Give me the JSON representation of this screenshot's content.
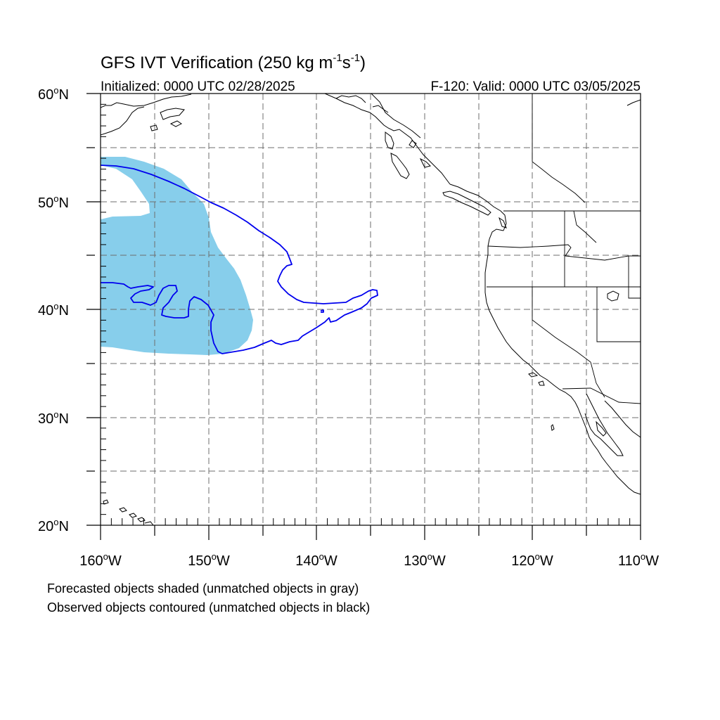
{
  "title": {
    "main": "GFS IVT Verification (250 kg m",
    "exp1": "-1",
    "mid": "s",
    "exp2": "-1",
    "close": ")"
  },
  "subtitle_left": "Initialized: 0000 UTC 02/28/2025",
  "subtitle_right": "F-120: Valid: 0000 UTC 03/05/2025",
  "lat_labels": [
    {
      "deg": "60",
      "hemi": "N"
    },
    {
      "deg": "50",
      "hemi": "N"
    },
    {
      "deg": "40",
      "hemi": "N"
    },
    {
      "deg": "30",
      "hemi": "N"
    },
    {
      "deg": "20",
      "hemi": "N"
    }
  ],
  "lon_labels": [
    {
      "deg": "160",
      "hemi": "W"
    },
    {
      "deg": "150",
      "hemi": "W"
    },
    {
      "deg": "140",
      "hemi": "W"
    },
    {
      "deg": "130",
      "hemi": "W"
    },
    {
      "deg": "120",
      "hemi": "W"
    },
    {
      "deg": "110",
      "hemi": "W"
    }
  ],
  "degree_symbol": "o",
  "legend": {
    "line1": "Forecasted objects shaded (unmatched objects in gray)",
    "line2": "Observed objects contoured (unmatched objects in black)"
  },
  "map": {
    "lon_range": [
      -160,
      -110
    ],
    "lat_range": [
      20,
      60
    ],
    "grid_style": "dashed gray",
    "forecast_object_color": "#87ceeb",
    "observed_contour_color": "#0000ee",
    "coastline_color": "#000000"
  }
}
